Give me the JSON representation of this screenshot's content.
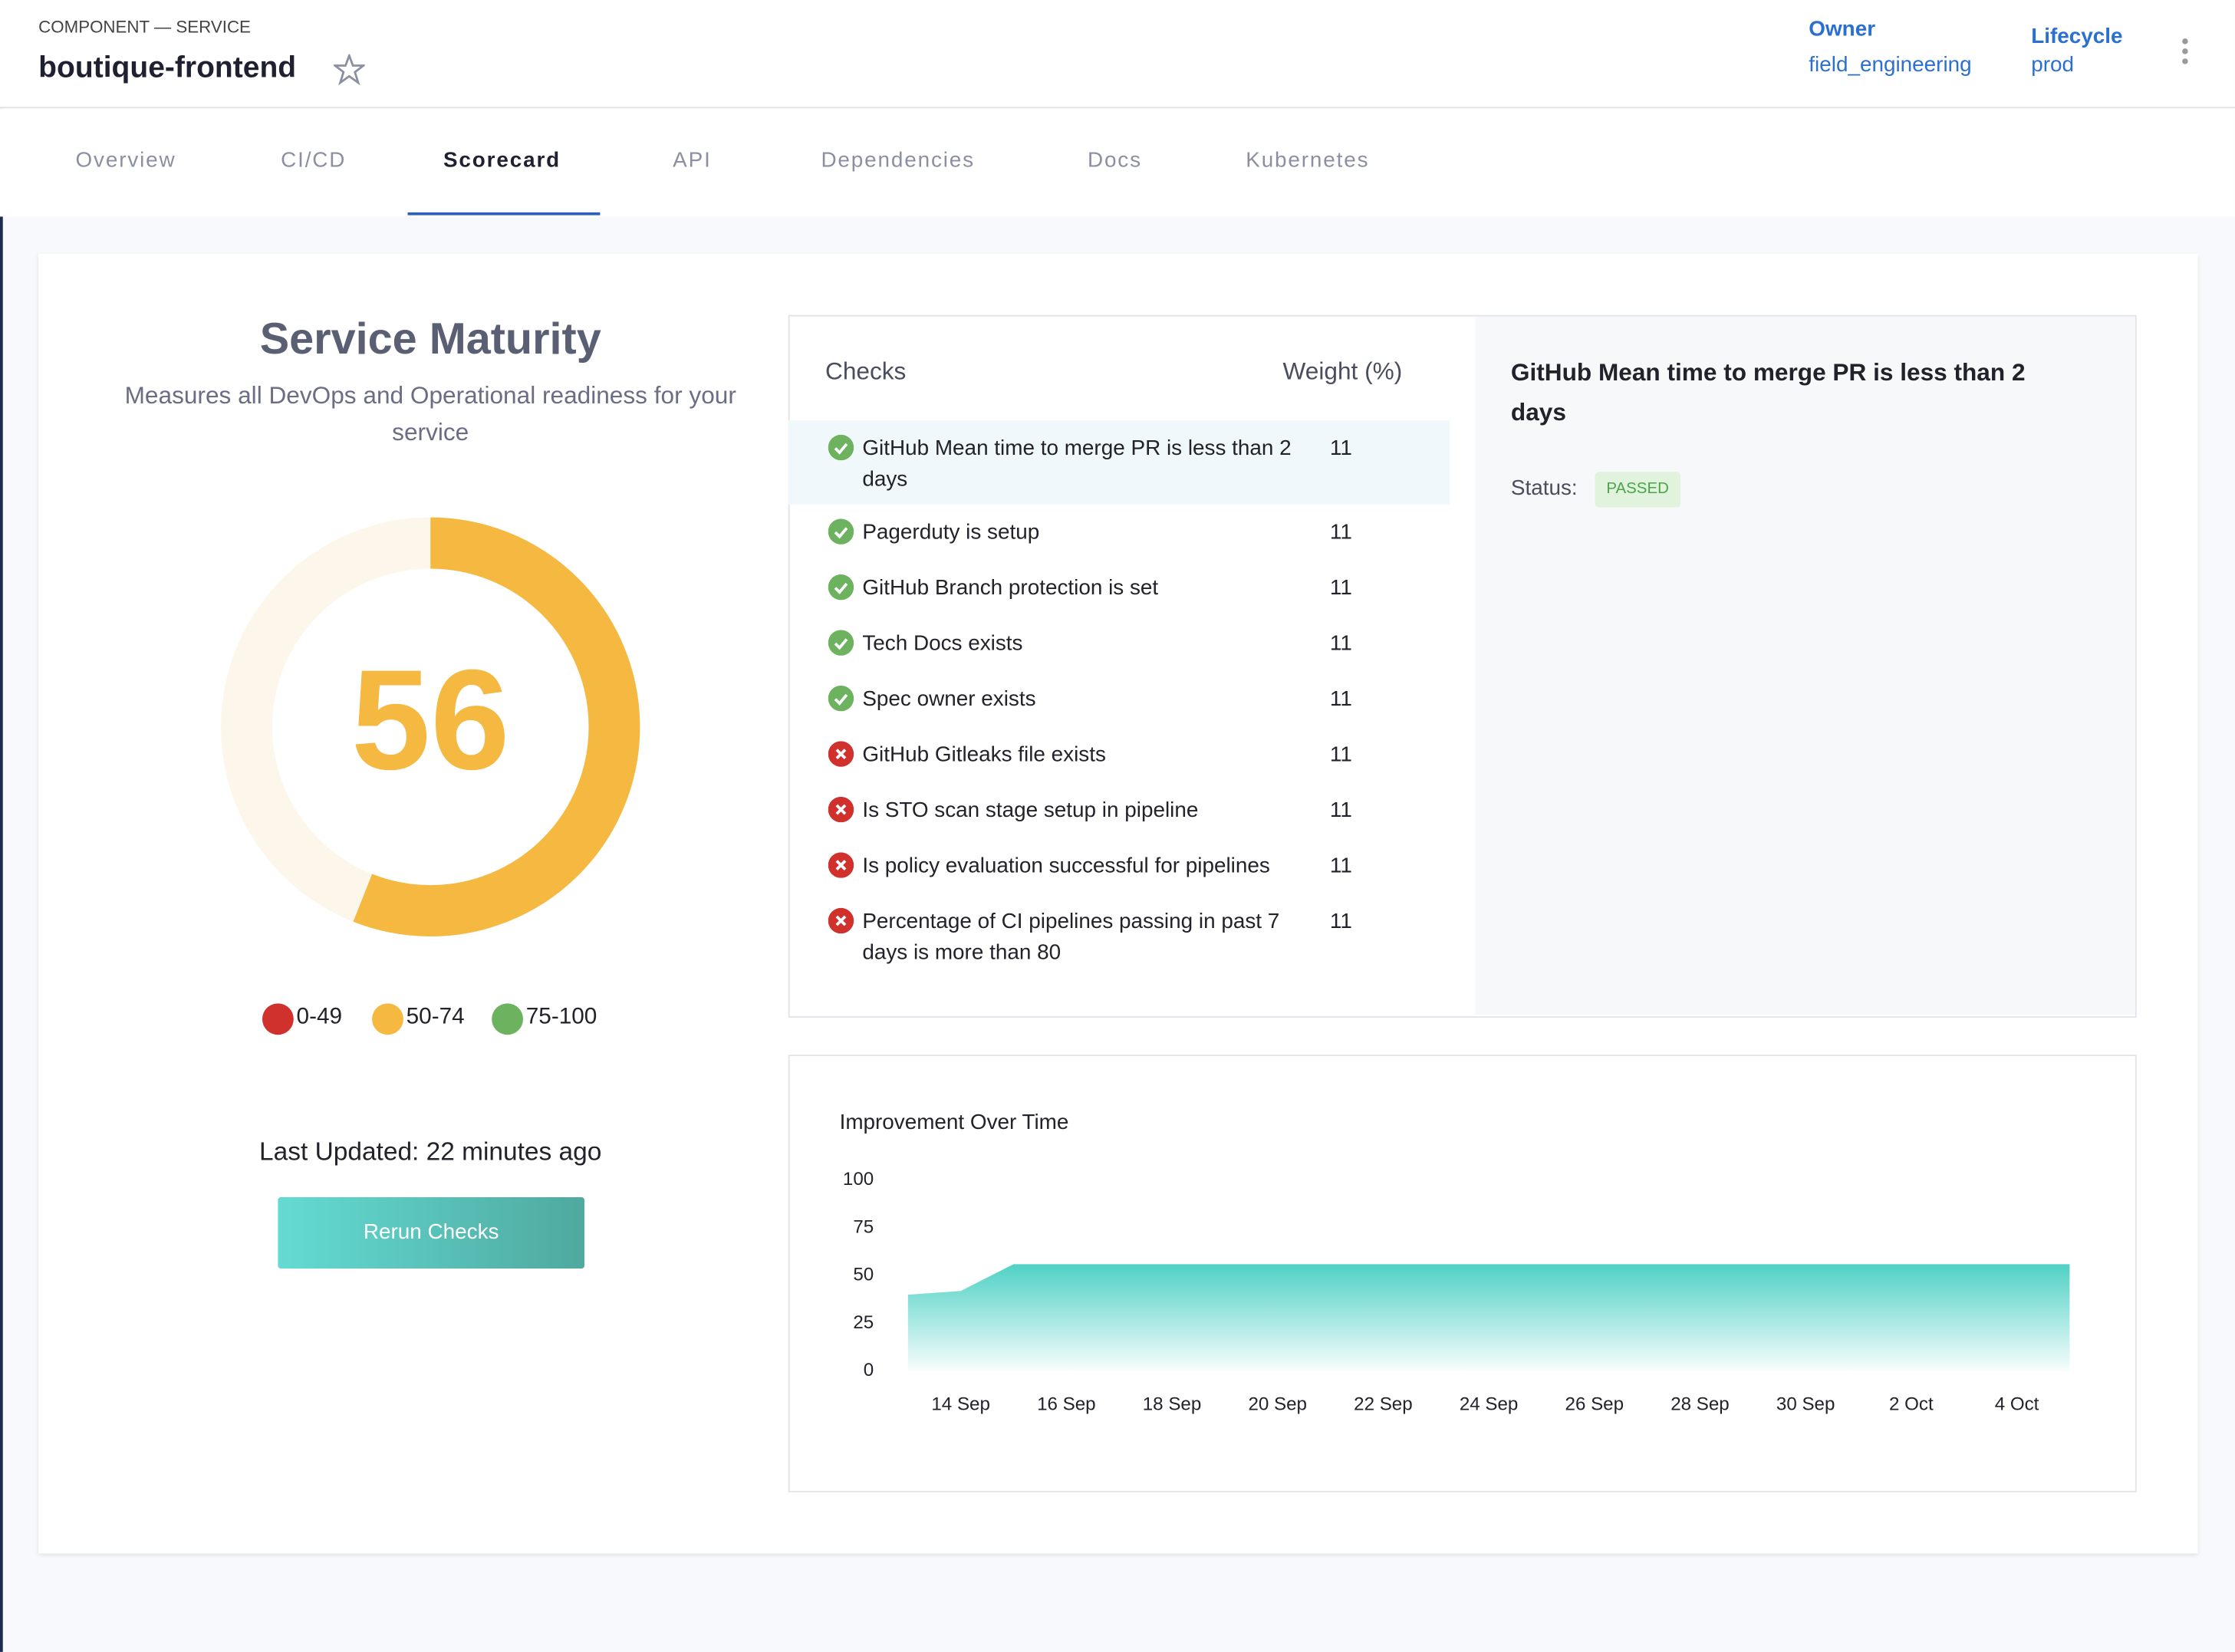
{
  "header": {
    "kind": "COMPONENT — SERVICE",
    "name": "boutique-frontend",
    "owner_label": "Owner",
    "owner": "field_engineering",
    "lifecycle_label": "Lifecycle",
    "lifecycle": "prod"
  },
  "tabs": {
    "items": [
      "Overview",
      "CI/CD",
      "Scorecard",
      "API",
      "Dependencies",
      "Docs",
      "Kubernetes"
    ],
    "active": 2
  },
  "scorecard": {
    "title": "Service Maturity",
    "subtitle": "Measures all DevOps and Operational readiness for your service",
    "score": 56,
    "max": 100,
    "ranges": [
      {
        "label": "0-49",
        "color": "#d0312d"
      },
      {
        "label": "50-74",
        "color": "#f5b942"
      },
      {
        "label": "75-100",
        "color": "#6db35f"
      }
    ],
    "last_updated": "Last Updated: 22 minutes ago",
    "button": "Rerun Checks"
  },
  "checks": {
    "header_name": "Checks",
    "header_weight": "Weight (%)",
    "selected": 0,
    "rows": [
      {
        "name": "GitHub Mean time to merge PR is less than 2 days",
        "weight": 11,
        "status": "passed"
      },
      {
        "name": "Pagerduty is setup",
        "weight": 11,
        "status": "passed"
      },
      {
        "name": "GitHub Branch protection is set",
        "weight": 11,
        "status": "passed"
      },
      {
        "name": "Tech Docs exists",
        "weight": 11,
        "status": "passed"
      },
      {
        "name": "Spec owner exists",
        "weight": 11,
        "status": "passed"
      },
      {
        "name": "GitHub Gitleaks file exists",
        "weight": 11,
        "status": "failed"
      },
      {
        "name": "Is STO scan stage setup in pipeline",
        "weight": 11,
        "status": "failed"
      },
      {
        "name": "Is policy evaluation successful for pipelines",
        "weight": 11,
        "status": "failed"
      },
      {
        "name": "Percentage of CI pipelines passing in past 7 days is more than 80",
        "weight": 11,
        "status": "failed"
      }
    ]
  },
  "detail": {
    "title": "GitHub Mean time to merge PR is less than 2 days",
    "status_label": "Status:",
    "status": "PASSED"
  },
  "chart_data": {
    "type": "area",
    "title": "Improvement Over Time",
    "color": "#4fd1c5",
    "x": [
      "13 Sep",
      "14 Sep",
      "15 Sep",
      "16 Sep",
      "17 Sep",
      "18 Sep",
      "19 Sep",
      "20 Sep",
      "21 Sep",
      "22 Sep",
      "23 Sep",
      "24 Sep",
      "25 Sep",
      "26 Sep",
      "27 Sep",
      "28 Sep",
      "29 Sep",
      "30 Sep",
      "1 Oct",
      "2 Oct",
      "3 Oct",
      "4 Oct",
      "5 Oct"
    ],
    "values": [
      40,
      42,
      56,
      56,
      56,
      56,
      56,
      56,
      56,
      56,
      56,
      56,
      56,
      56,
      56,
      56,
      56,
      56,
      56,
      56,
      56,
      56,
      56
    ],
    "xticks": [
      "14 Sep",
      "16 Sep",
      "18 Sep",
      "20 Sep",
      "22 Sep",
      "24 Sep",
      "26 Sep",
      "28 Sep",
      "30 Sep",
      "2 Oct",
      "4 Oct"
    ],
    "ylim": [
      0,
      100
    ],
    "yticks": [
      0,
      25,
      50,
      75,
      100
    ]
  }
}
